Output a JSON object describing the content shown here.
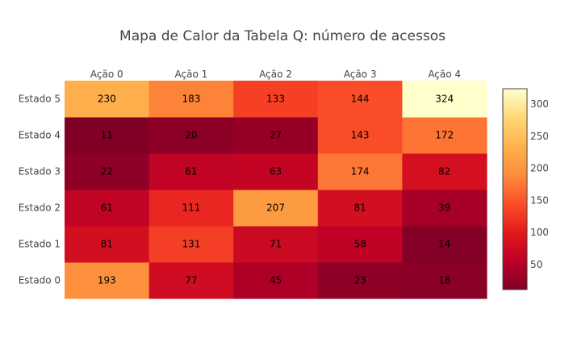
{
  "chart_data": {
    "type": "heatmap",
    "title": "Mapa de Calor da Tabela Q: número de acessos",
    "x": [
      "Ação 0",
      "Ação 1",
      "Ação 2",
      "Ação 3",
      "Ação 4"
    ],
    "y": [
      "Estado 0",
      "Estado 1",
      "Estado 2",
      "Estado 3",
      "Estado 4",
      "Estado 5"
    ],
    "z": [
      [
        193,
        77,
        45,
        23,
        18
      ],
      [
        81,
        131,
        71,
        58,
        14
      ],
      [
        61,
        111,
        207,
        81,
        39
      ],
      [
        22,
        61,
        63,
        174,
        82
      ],
      [
        11,
        20,
        27,
        143,
        172
      ],
      [
        230,
        183,
        133,
        144,
        324
      ]
    ],
    "xaxis_side": "top",
    "colorscale": "YlOrRd",
    "colors": [
      "#800026",
      "#bd0026",
      "#e31a1c",
      "#fc4e2a",
      "#fd8d3c",
      "#feb24c",
      "#fed976",
      "#ffffcc"
    ],
    "zmin": 11,
    "zmax": 324,
    "colorbar": {
      "ticks": [
        50,
        100,
        150,
        200,
        250,
        300
      ]
    },
    "legend": "right"
  }
}
